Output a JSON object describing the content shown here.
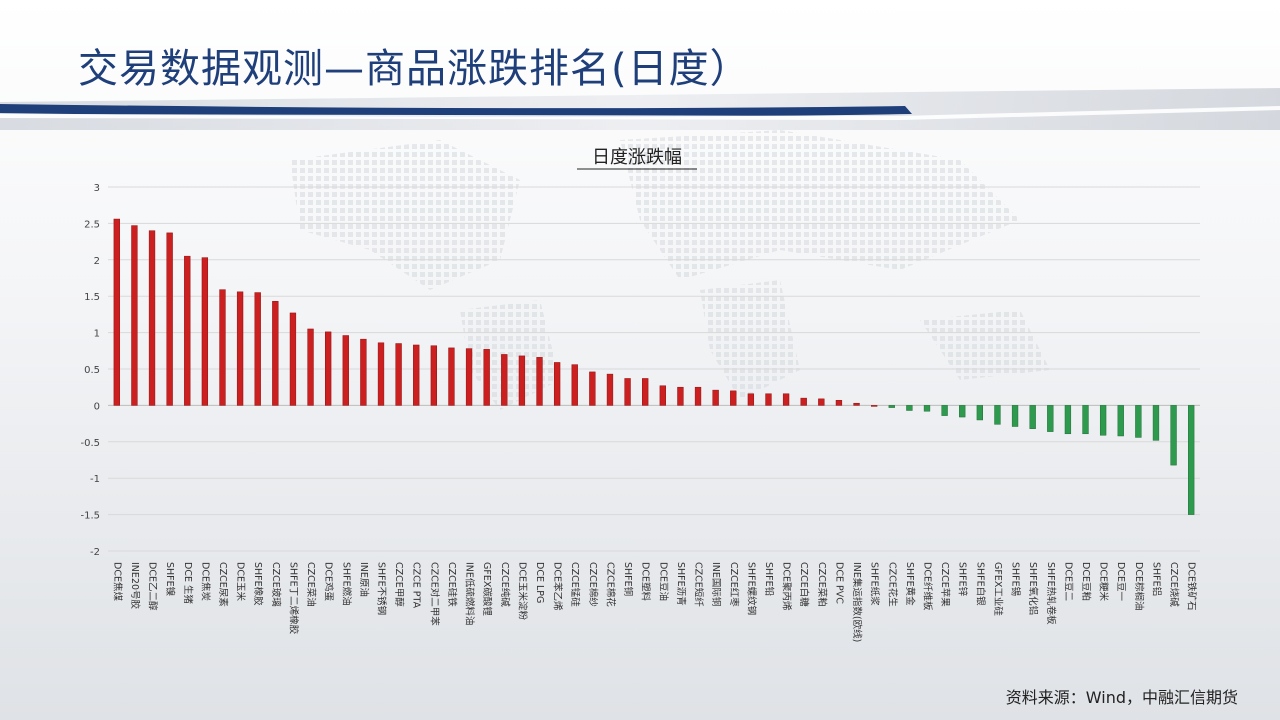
{
  "header": {
    "title": "交易数据观测—商品涨跌排名(日度）"
  },
  "footer": {
    "source": "资料来源：Wind，中融汇信期货"
  },
  "colors": {
    "positive": "#cc1f1f",
    "negative": "#2e9a4e",
    "title": "#1f3f7a",
    "band": "#1f3f7a"
  },
  "chart_data": {
    "type": "bar",
    "title": "日度涨跌幅",
    "ylim": [
      -2,
      3
    ],
    "yticks": [
      3,
      2.5,
      2,
      1.5,
      1,
      0.5,
      0,
      -0.5,
      -1,
      -1.5,
      -2
    ],
    "grid": true,
    "legend": "none",
    "categories": [
      "DCE焦煤",
      "INE20号胶",
      "DCE乙二醇",
      "SHFE镍",
      "DCE 生猪",
      "DCE焦炭",
      "CZCE尿素",
      "DCE玉米",
      "SHFE橡胶",
      "CZCE玻璃",
      "SHFE丁二烯橡胶",
      "CZCE菜油",
      "DCE鸡蛋",
      "SHFE燃油",
      "INE原油",
      "SHFE不锈钢",
      "CZCE甲醇",
      "CZCE PTA",
      "CZCE对二甲苯",
      "CZCE硅铁",
      "INE低硫燃料油",
      "GFEX碳酸锂",
      "CZCE纯碱",
      "DCE玉米淀粉",
      "DCE LPG",
      "DCE苯乙烯",
      "CZCE锰硅",
      "CZCE棉纱",
      "CZCE棉花",
      "SHFE铜",
      "DCE塑料",
      "DCE豆油",
      "SHFE沥青",
      "CZCE短纤",
      "INE国际铜",
      "CZCE红枣",
      "SHFE螺纹钢",
      "SHFE铅",
      "DCE聚丙烯",
      "CZCE白糖",
      "CZCE菜粕",
      "DCE PVC",
      "INE集运指数(欧线)",
      "SHFE纸浆",
      "CZCE花生",
      "SHFE黄金",
      "DCE纤维板",
      "CZCE苹果",
      "SHFE锌",
      "SHFE白银",
      "GFEX工业硅",
      "SHFE锡",
      "SHFE氧化铝",
      "SHFE热轧卷板",
      "DCE豆二",
      "DCE豆粕",
      "DCE粳米",
      "DCE豆一",
      "DCE棕榈油",
      "SHFE铝",
      "CZCE烧碱",
      "DCE铁矿石"
    ],
    "values": [
      2.56,
      2.47,
      2.4,
      2.37,
      2.05,
      2.03,
      1.59,
      1.56,
      1.55,
      1.43,
      1.27,
      1.05,
      1.01,
      0.96,
      0.91,
      0.86,
      0.85,
      0.83,
      0.82,
      0.79,
      0.78,
      0.77,
      0.7,
      0.68,
      0.66,
      0.59,
      0.56,
      0.46,
      0.43,
      0.37,
      0.37,
      0.27,
      0.25,
      0.25,
      0.21,
      0.2,
      0.16,
      0.16,
      0.16,
      0.1,
      0.09,
      0.07,
      0.03,
      0.0,
      -0.03,
      -0.07,
      -0.08,
      -0.14,
      -0.16,
      -0.2,
      -0.26,
      -0.29,
      -0.32,
      -0.36,
      -0.39,
      -0.39,
      -0.41,
      -0.42,
      -0.44,
      -0.48,
      -0.82,
      -1.5
    ]
  }
}
